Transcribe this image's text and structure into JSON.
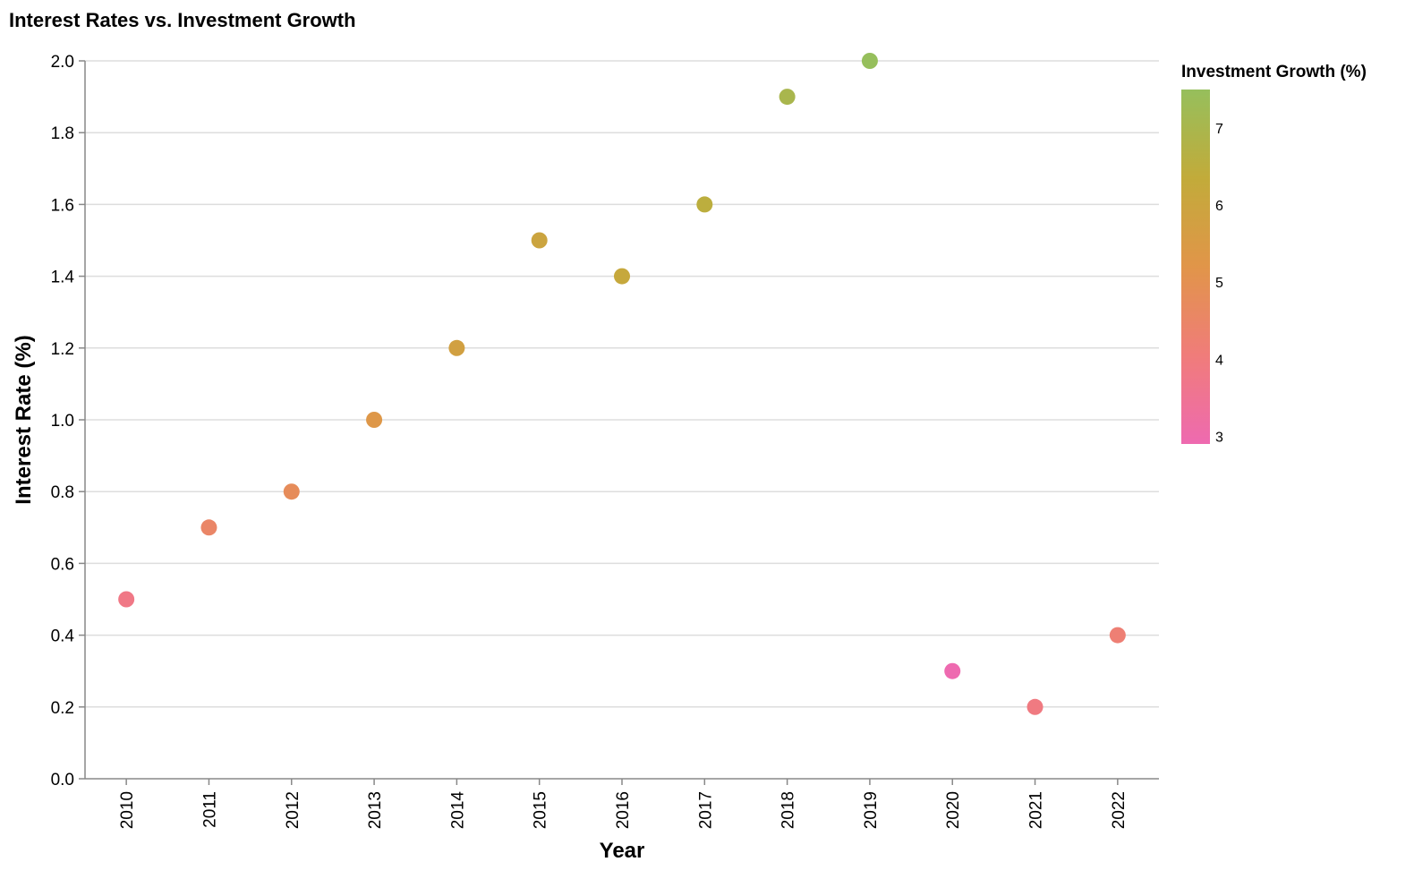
{
  "chart_data": {
    "type": "scatter",
    "title": "Interest Rates vs. Investment Growth",
    "xlabel": "Year",
    "ylabel": "Interest Rate (%)",
    "x": [
      "2010",
      "2011",
      "2012",
      "2013",
      "2014",
      "2015",
      "2016",
      "2017",
      "2018",
      "2019",
      "2020",
      "2021",
      "2022"
    ],
    "y": [
      0.5,
      0.7,
      0.8,
      1.0,
      1.2,
      1.5,
      1.4,
      1.6,
      1.9,
      2.0,
      0.3,
      0.2,
      0.4
    ],
    "color_values": [
      3.8,
      4.5,
      4.8,
      5.3,
      5.8,
      6.0,
      6.2,
      6.5,
      7.0,
      7.5,
      2.9,
      3.9,
      4.2
    ],
    "ylim": [
      0,
      2.0
    ],
    "yticks": [
      "0.0",
      "0.2",
      "0.4",
      "0.6",
      "0.8",
      "1.0",
      "1.2",
      "1.4",
      "1.6",
      "1.8",
      "2.0"
    ],
    "grid": true,
    "legend": {
      "title": "Investment Growth (%)",
      "placement": "top-right",
      "ticks": [
        "3",
        "4",
        "5",
        "6",
        "7"
      ],
      "range": [
        2.9,
        7.5
      ],
      "color_scale": [
        "#ee6ab0",
        "#f07c7a",
        "#e19549",
        "#c2ab3a",
        "#96bf5c"
      ]
    }
  }
}
